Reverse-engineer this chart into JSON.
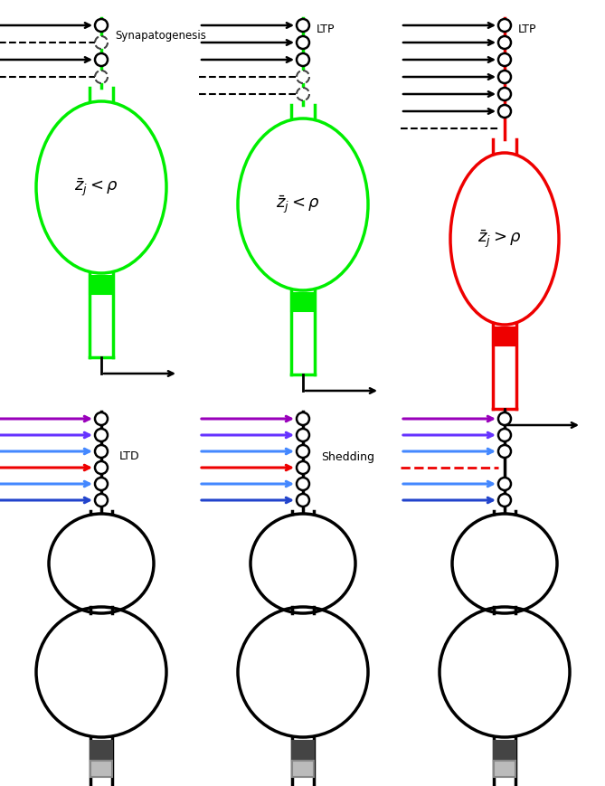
{
  "green": "#00ee00",
  "red": "#ee0000",
  "black": "#000000",
  "dark_gray": "#444444",
  "mid_gray": "#888888",
  "light_gray": "#bbbbbb",
  "purple": "#9900bb",
  "violet": "#6633ff",
  "blue1": "#4488ff",
  "blue2": "#2244cc",
  "label_synap": "Synapatogenesis",
  "label_ltp": "LTP",
  "label_ltd": "LTD",
  "label_shed": "Shedding",
  "eq_less": "$\\bar{z}_j < \\rho$",
  "eq_greater": "$\\bar{z}_j > \\rho$",
  "top_synap_colors_solid": [
    "#000000",
    "#000000"
  ],
  "top_synap_colors_dashed": [
    "#000000",
    "#000000",
    "#000000"
  ],
  "bottom_arrow_colors": [
    "#9900bb",
    "#6633ff",
    "#4488ff",
    "#ee0000",
    "#4488ff",
    "#2244cc"
  ]
}
